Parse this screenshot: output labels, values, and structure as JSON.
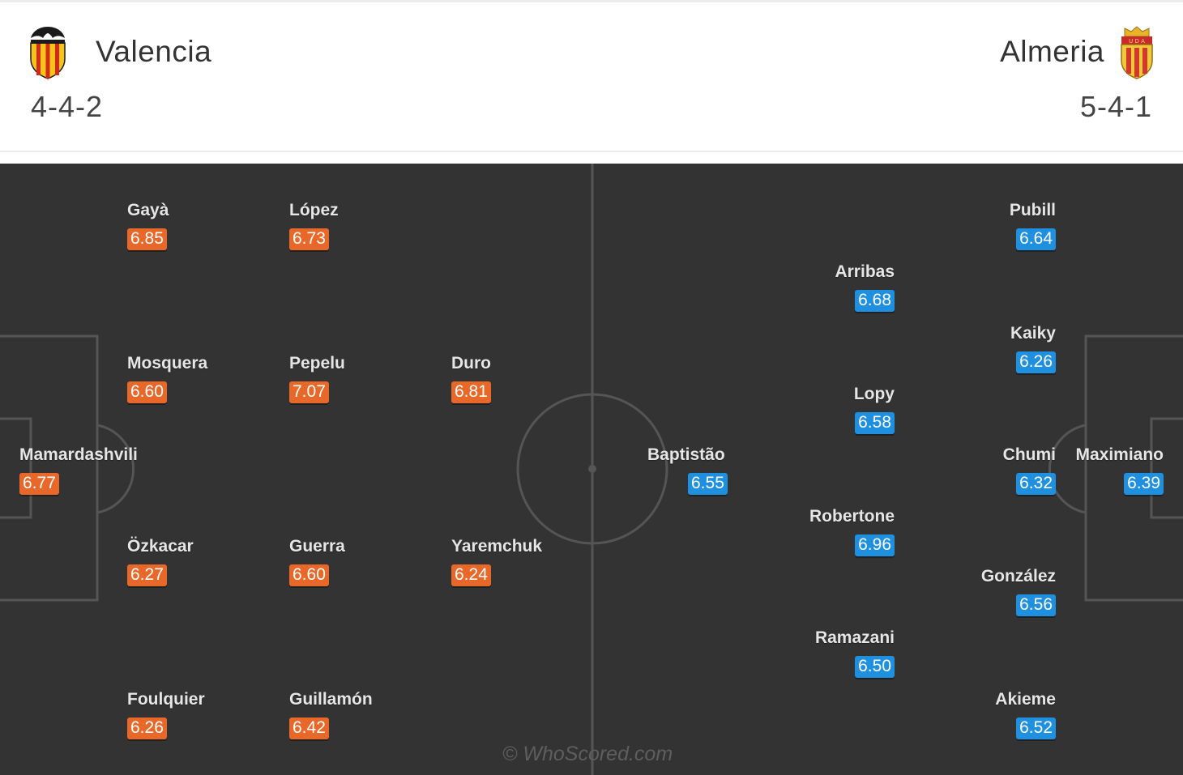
{
  "header": {
    "home": {
      "name": "Valencia",
      "formation": "4-4-2",
      "crest_icon": "valencia-bat-crest"
    },
    "away": {
      "name": "Almeria",
      "formation": "5-4-1",
      "crest_icon": "almeria-shield-crest"
    }
  },
  "colors": {
    "home_rating": "#e8682a",
    "away_rating": "#1f8fe0",
    "pitch": "#333333",
    "pitch_lines": "#555555"
  },
  "home_players": [
    {
      "name": "Gayà",
      "rating": "6.85"
    },
    {
      "name": "López",
      "rating": "6.73"
    },
    {
      "name": "Mosquera",
      "rating": "6.60"
    },
    {
      "name": "Pepelu",
      "rating": "7.07"
    },
    {
      "name": "Duro",
      "rating": "6.81"
    },
    {
      "name": "Mamardashvili",
      "rating": "6.77"
    },
    {
      "name": "Özkacar",
      "rating": "6.27"
    },
    {
      "name": "Guerra",
      "rating": "6.60"
    },
    {
      "name": "Yaremchuk",
      "rating": "6.24"
    },
    {
      "name": "Foulquier",
      "rating": "6.26"
    },
    {
      "name": "Guillamón",
      "rating": "6.42"
    }
  ],
  "away_players": [
    {
      "name": "Pubill",
      "rating": "6.64"
    },
    {
      "name": "Arribas",
      "rating": "6.68"
    },
    {
      "name": "Kaiky",
      "rating": "6.26"
    },
    {
      "name": "Lopy",
      "rating": "6.58"
    },
    {
      "name": "Baptistão",
      "rating": "6.55"
    },
    {
      "name": "Chumi",
      "rating": "6.32"
    },
    {
      "name": "Maximiano",
      "rating": "6.39"
    },
    {
      "name": "Robertone",
      "rating": "6.96"
    },
    {
      "name": "González",
      "rating": "6.56"
    },
    {
      "name": "Ramazani",
      "rating": "6.50"
    },
    {
      "name": "Akieme",
      "rating": "6.52"
    }
  ],
  "watermark": "© WhoScored.com"
}
